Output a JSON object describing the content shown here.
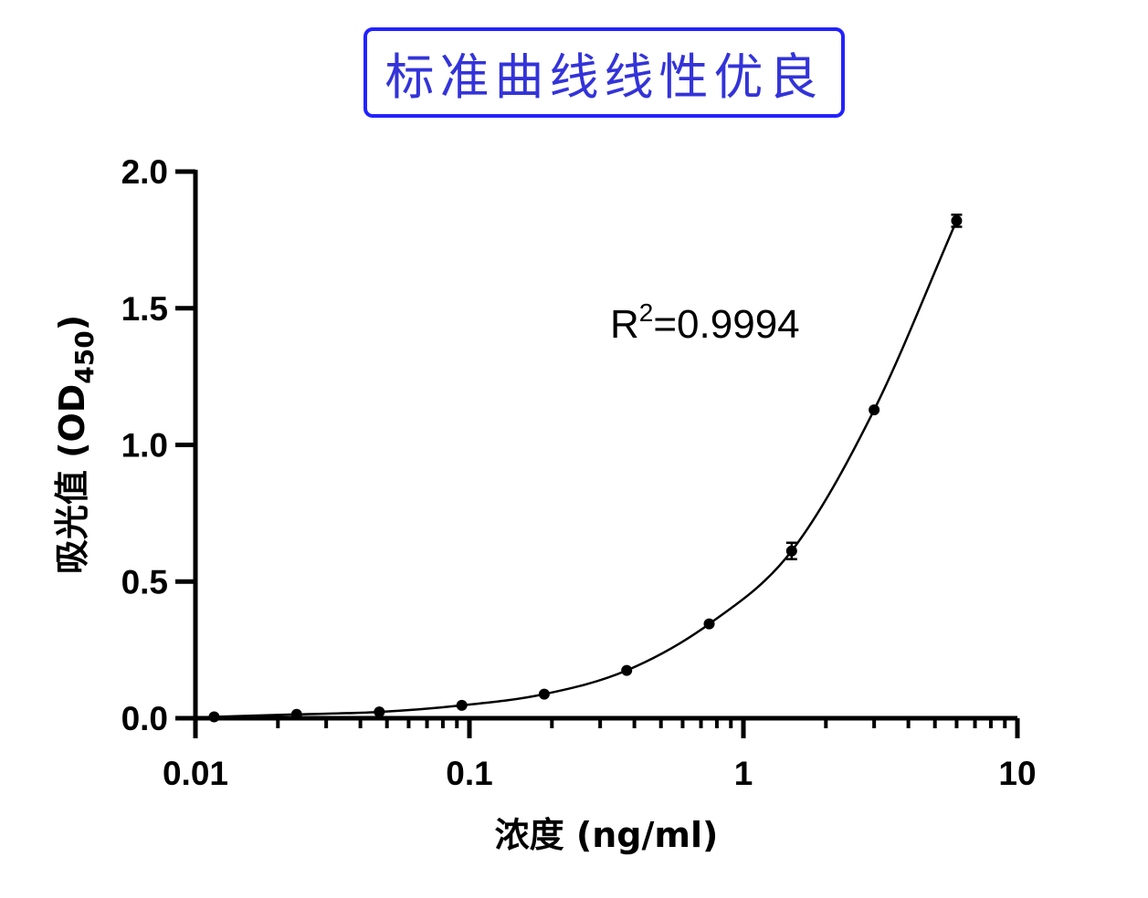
{
  "header": {
    "title": "标准曲线线性优良"
  },
  "colors": {
    "title_border": "#2222ff",
    "title_text": "#3333d9",
    "series": "#000000"
  },
  "chart_data": {
    "type": "scatter",
    "title": "标准曲线线性优良",
    "xlabel": "浓度  (ng/ml)",
    "ylabel_main": "吸光值 (OD",
    "ylabel_sub": "450",
    "ylabel_close": ")",
    "x_scale": "log",
    "xlim": [
      0.01,
      10
    ],
    "ylim": [
      0,
      2.0
    ],
    "x_tick_labels": [
      "0.01",
      "0.1",
      "1",
      "10"
    ],
    "x_ticks": [
      0.01,
      0.1,
      1,
      10
    ],
    "y_ticks": [
      0.0,
      0.5,
      1.0,
      1.5,
      2.0
    ],
    "y_tick_labels": [
      "0.0",
      "0.5",
      "1.0",
      "1.5",
      "2.0"
    ],
    "grid": false,
    "annotation": {
      "base": "R",
      "sup": "2",
      "rest": "=0.9994"
    },
    "series": [
      {
        "points": [
          {
            "x": 0.0117,
            "y": 0.005,
            "err": 0.0
          },
          {
            "x": 0.0234,
            "y": 0.014,
            "err": 0.0
          },
          {
            "x": 0.0469,
            "y": 0.023,
            "err": 0.0
          },
          {
            "x": 0.0938,
            "y": 0.047,
            "err": 0.0
          },
          {
            "x": 0.1875,
            "y": 0.088,
            "err": 0.0
          },
          {
            "x": 0.375,
            "y": 0.175,
            "err": 0.0
          },
          {
            "x": 0.75,
            "y": 0.345,
            "err": 0.0
          },
          {
            "x": 1.5,
            "y": 0.612,
            "err": 0.03
          },
          {
            "x": 3.0,
            "y": 1.128,
            "err": 0.0
          },
          {
            "x": 6.0,
            "y": 1.82,
            "err": 0.022
          }
        ]
      }
    ]
  }
}
